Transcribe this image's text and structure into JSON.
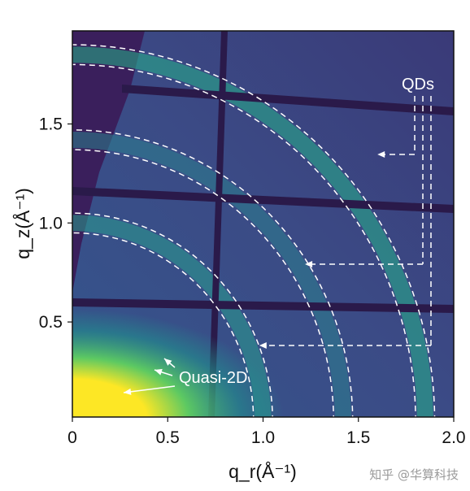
{
  "chart_data": {
    "type": "heatmap",
    "title": "",
    "xlabel": "q_r(Å⁻¹)",
    "ylabel": "q_z(Å⁻¹)",
    "xlim": [
      0.0,
      2.0
    ],
    "ylim": [
      0.02,
      1.97
    ],
    "x_ticks": [
      0.0,
      0.5,
      1.0,
      1.5,
      2.0
    ],
    "x_tick_labels": [
      "0",
      "0.5",
      "1.0",
      "1.5",
      "2.0"
    ],
    "y_ticks": [
      0.5,
      1.0,
      1.5
    ],
    "y_tick_labels": [
      "0.5",
      "1.0",
      "1.5"
    ],
    "rings": [
      {
        "q": 1.0,
        "description": "QD ring 1"
      },
      {
        "q": 1.42,
        "description": "QD ring 2"
      },
      {
        "q": 1.85,
        "description": "QD ring 3"
      }
    ],
    "annotations": [
      {
        "text": "QDs",
        "color": "#ffffff"
      },
      {
        "text": "Quasi-2D",
        "color": "#ffffff"
      }
    ],
    "colormap": [
      "#440154",
      "#3b528b",
      "#21908d",
      "#5dc962",
      "#fde725"
    ],
    "background_color": "#3a2e6e"
  },
  "watermark": "知乎 @华算科技"
}
